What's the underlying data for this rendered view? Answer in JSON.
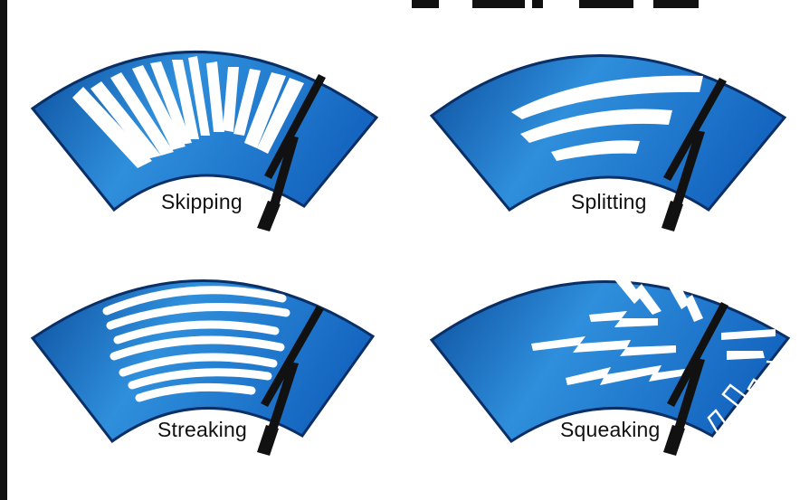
{
  "panels": [
    {
      "id": "skipping",
      "label": "Skipping"
    },
    {
      "id": "splitting",
      "label": "Splitting"
    },
    {
      "id": "streaking",
      "label": "Streaking"
    },
    {
      "id": "squeaking",
      "label": "Squeaking"
    }
  ],
  "colors": {
    "windshield_light": "#2f8fdc",
    "windshield_dark": "#0c4f9e",
    "streak": "#ffffff",
    "wiper": "#111111"
  }
}
